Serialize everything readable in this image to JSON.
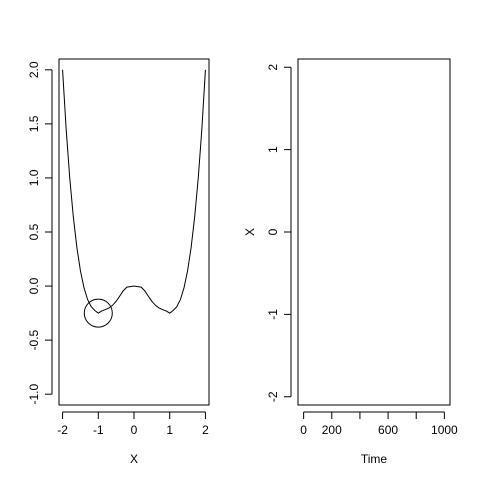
{
  "chart_data": [
    {
      "type": "line",
      "title": "",
      "xlabel": "X",
      "ylabel": "",
      "xlim": [
        -2.1,
        2.1
      ],
      "ylim": [
        -1.1,
        2.1
      ],
      "xticks": [
        -2,
        -1,
        0,
        1,
        2
      ],
      "xtick_labels": [
        "-2",
        "-1",
        "0",
        "1",
        "2"
      ],
      "yticks": [
        -1.0,
        -0.5,
        0.0,
        0.5,
        1.0,
        1.5,
        2.0
      ],
      "ytick_labels": [
        "-1.0",
        "-0.5",
        "0.0",
        "0.5",
        "1.0",
        "1.5",
        "2.0"
      ],
      "series": [
        {
          "x": [
            -2.0,
            -1.9,
            -1.8,
            -1.7,
            -1.6,
            -1.5,
            -1.4,
            -1.3,
            -1.2,
            -1.1,
            -1.0,
            -0.9,
            -0.8,
            -0.7,
            -0.6,
            -0.5,
            -0.4,
            -0.3,
            -0.2,
            -0.1,
            0.0,
            0.1,
            0.2,
            0.3,
            0.4,
            0.5,
            0.6,
            0.7,
            0.8,
            0.9,
            1.0,
            1.1,
            1.2,
            1.3,
            1.4,
            1.5,
            1.6,
            1.7,
            1.8,
            1.9,
            2.0
          ],
          "y": [
            2.0,
            1.453,
            1.004,
            0.643,
            0.358,
            0.141,
            -0.016,
            -0.124,
            -0.19,
            -0.225,
            -0.25,
            -0.23,
            -0.217,
            -0.202,
            -0.178,
            -0.141,
            -0.093,
            -0.043,
            -0.01,
            -0.005,
            0.0,
            -0.005,
            -0.01,
            -0.043,
            -0.093,
            -0.141,
            -0.178,
            -0.202,
            -0.217,
            -0.23,
            -0.25,
            -0.225,
            -0.19,
            -0.124,
            -0.016,
            0.141,
            0.358,
            0.643,
            1.004,
            1.453,
            2.0
          ]
        }
      ],
      "marker": {
        "shape": "circle",
        "x": -1.0,
        "y": -0.25
      }
    },
    {
      "type": "line",
      "title": "",
      "xlabel": "Time",
      "ylabel": "X",
      "xlim": [
        -40,
        1040
      ],
      "ylim": [
        -2.1,
        2.1
      ],
      "xticks": [
        0,
        200,
        400,
        600,
        800,
        1000
      ],
      "xtick_labels": [
        "0",
        "200",
        "",
        "600",
        "",
        "1000"
      ],
      "yticks": [
        -2,
        -1,
        0,
        1,
        2
      ],
      "ytick_labels": [
        "-2",
        "-1",
        "0",
        "1",
        "2"
      ],
      "series": []
    }
  ]
}
